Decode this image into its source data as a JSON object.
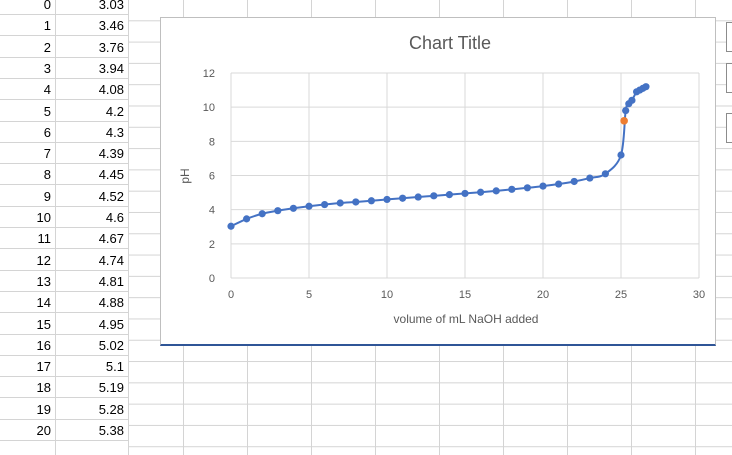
{
  "rows": [
    {
      "a": "0",
      "b": "3.03"
    },
    {
      "a": "1",
      "b": "3.46"
    },
    {
      "a": "2",
      "b": "3.76"
    },
    {
      "a": "3",
      "b": "3.94"
    },
    {
      "a": "4",
      "b": "4.08"
    },
    {
      "a": "5",
      "b": "4.2"
    },
    {
      "a": "6",
      "b": "4.3"
    },
    {
      "a": "7",
      "b": "4.39"
    },
    {
      "a": "8",
      "b": "4.45"
    },
    {
      "a": "9",
      "b": "4.52"
    },
    {
      "a": "10",
      "b": "4.6"
    },
    {
      "a": "11",
      "b": "4.67"
    },
    {
      "a": "12",
      "b": "4.74"
    },
    {
      "a": "13",
      "b": "4.81"
    },
    {
      "a": "14",
      "b": "4.88"
    },
    {
      "a": "15",
      "b": "4.95"
    },
    {
      "a": "16",
      "b": "5.02"
    },
    {
      "a": "17",
      "b": "5.1"
    },
    {
      "a": "18",
      "b": "5.19"
    },
    {
      "a": "19",
      "b": "5.28"
    },
    {
      "a": "20",
      "b": "5.38"
    }
  ],
  "chart_data": {
    "type": "scatter",
    "title": "Chart Title",
    "xlabel": "volume of mL NaOH added",
    "ylabel": "pH",
    "xlim": [
      0,
      30
    ],
    "ylim": [
      0,
      12
    ],
    "xticks": [
      "0",
      "5",
      "10",
      "15",
      "20",
      "25",
      "30"
    ],
    "yticks": [
      "0",
      "2",
      "4",
      "6",
      "8",
      "10",
      "12"
    ],
    "grid": true,
    "series_color": "#4472c4",
    "highlight_color": "#ed7d31",
    "points": [
      [
        0,
        3.03
      ],
      [
        1,
        3.46
      ],
      [
        2,
        3.76
      ],
      [
        3,
        3.94
      ],
      [
        4,
        4.08
      ],
      [
        5,
        4.2
      ],
      [
        6,
        4.3
      ],
      [
        7,
        4.39
      ],
      [
        8,
        4.45
      ],
      [
        9,
        4.52
      ],
      [
        10,
        4.6
      ],
      [
        11,
        4.67
      ],
      [
        12,
        4.74
      ],
      [
        13,
        4.81
      ],
      [
        14,
        4.88
      ],
      [
        15,
        4.95
      ],
      [
        16,
        5.02
      ],
      [
        17,
        5.1
      ],
      [
        18,
        5.19
      ],
      [
        19,
        5.28
      ],
      [
        20,
        5.38
      ],
      [
        21,
        5.5
      ],
      [
        22,
        5.65
      ],
      [
        23,
        5.85
      ],
      [
        24,
        6.1
      ],
      [
        25,
        7.2
      ],
      [
        25.3,
        9.8
      ],
      [
        25.5,
        10.2
      ],
      [
        25.7,
        10.4
      ],
      [
        26,
        10.9
      ],
      [
        26.2,
        11.0
      ],
      [
        26.4,
        11.1
      ],
      [
        26.6,
        11.2
      ]
    ],
    "highlight_point": [
      25.2,
      9.2
    ]
  }
}
